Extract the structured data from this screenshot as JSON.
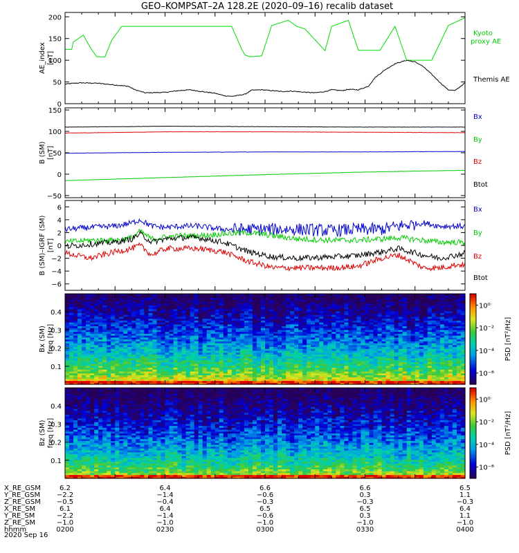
{
  "title": "GEO–KOMPSAT–2A 128.2E (2020–09–16) recalib dataset",
  "chart_data": [
    {
      "type": "line",
      "ylabel": "AE_index",
      "yunit": "[nT]",
      "ylim": [
        0,
        210
      ],
      "yticks": [
        0,
        50,
        100,
        150,
        200
      ],
      "x_range_min": [
        0,
        120
      ],
      "series": [
        {
          "name": "Kyoto proxy AE",
          "color": "#00dd00",
          "x": [
            0,
            4,
            5,
            11,
            15,
            19,
            24,
            28,
            34,
            40,
            52,
            64,
            80,
            88,
            95,
            100,
            106,
            108,
            111,
            118,
            124,
            134,
            139,
            144,
            156,
            160,
            170,
            176,
            184,
            189,
            198,
            205,
            220,
            230,
            240
          ],
          "y": [
            125,
            125,
            142,
            158,
            130,
            108,
            108,
            146,
            178,
            178,
            178,
            178,
            178,
            178,
            178,
            178,
            125,
            112,
            108,
            110,
            180,
            192,
            178,
            172,
            122,
            178,
            192,
            123,
            123,
            123,
            178,
            100,
            100,
            180,
            198
          ]
        },
        {
          "name": "Themis AE",
          "color": "#000000",
          "x": [
            0,
            5,
            10,
            20,
            30,
            38,
            42,
            48,
            60,
            68,
            75,
            82,
            90,
            96,
            100,
            104,
            108,
            112,
            118,
            124,
            130,
            136,
            142,
            150,
            156,
            160,
            166,
            170,
            176,
            182,
            186,
            192,
            198,
            205,
            210,
            214,
            218,
            222,
            226,
            230,
            234,
            240
          ],
          "y": [
            45,
            47,
            48,
            47,
            43,
            40,
            32,
            25,
            26,
            30,
            32,
            28,
            24,
            18,
            17,
            19,
            22,
            31,
            32,
            30,
            28,
            29,
            27,
            25,
            28,
            32,
            30,
            33,
            32,
            40,
            60,
            78,
            92,
            100,
            96,
            88,
            75,
            60,
            45,
            32,
            30,
            48
          ]
        }
      ],
      "legend": [
        "Kyoto proxy AE",
        "Themis AE"
      ]
    },
    {
      "type": "line",
      "ylabel": "B (SM)",
      "yunit": "[nT]",
      "ylim": [
        -55,
        155
      ],
      "yticks": [
        -50,
        0,
        50,
        100,
        150
      ],
      "series": [
        {
          "name": "Bx",
          "color": "#0000cc",
          "x": [
            0,
            60,
            120,
            180,
            240
          ],
          "y": [
            49,
            51,
            52,
            52,
            53
          ]
        },
        {
          "name": "By",
          "color": "#00cc00",
          "x": [
            0,
            60,
            120,
            180,
            240
          ],
          "y": [
            -15,
            -8,
            -1,
            5,
            9
          ]
        },
        {
          "name": "Bz",
          "color": "#dd0000",
          "x": [
            0,
            60,
            120,
            180,
            240
          ],
          "y": [
            96,
            99,
            99,
            98,
            97
          ]
        },
        {
          "name": "Btot",
          "color": "#000000",
          "x": [
            0,
            60,
            120,
            180,
            240
          ],
          "y": [
            110,
            112,
            111,
            110,
            110
          ]
        }
      ],
      "legend": [
        "Bx",
        "By",
        "Bz",
        "Btot"
      ]
    },
    {
      "type": "line",
      "ylabel": "B (SM)–IGRF (SM)",
      "yunit": "[nT]",
      "ylim": [
        -7,
        7
      ],
      "yticks": [
        -6,
        -4,
        -2,
        0,
        2,
        4,
        6
      ],
      "series": [
        {
          "name": "Bx",
          "color": "#0000cc",
          "x": [
            0,
            15,
            30,
            40,
            45,
            52,
            60,
            70,
            80,
            95,
            110,
            125,
            140,
            160,
            175,
            190,
            200,
            215,
            225,
            235,
            240
          ],
          "y": [
            2.5,
            2.8,
            3.0,
            3.5,
            4.0,
            3.0,
            2.8,
            3.0,
            3.0,
            2.5,
            2.5,
            2.5,
            2.5,
            2.3,
            2.5,
            2.5,
            3.0,
            3.5,
            3.0,
            3.0,
            3.0
          ]
        },
        {
          "name": "By",
          "color": "#00cc00",
          "x": [
            0,
            15,
            30,
            40,
            45,
            52,
            60,
            70,
            80,
            95,
            110,
            125,
            140,
            160,
            175,
            190,
            200,
            215,
            225,
            235,
            240
          ],
          "y": [
            0.5,
            0.8,
            0.8,
            1.2,
            2.2,
            1.0,
            1.3,
            1.5,
            1.5,
            1.8,
            2.0,
            1.5,
            1.0,
            0.8,
            0.8,
            1.0,
            1.2,
            0.8,
            0.5,
            0.5,
            0.4
          ]
        },
        {
          "name": "Bz",
          "color": "#dd0000",
          "x": [
            0,
            15,
            30,
            40,
            45,
            52,
            60,
            70,
            80,
            95,
            110,
            125,
            140,
            160,
            175,
            190,
            200,
            215,
            225,
            235,
            240
          ],
          "y": [
            -1.2,
            -2.0,
            -1.0,
            -0.5,
            0.0,
            -1.5,
            -0.5,
            -0.5,
            -0.5,
            -1.0,
            -2.5,
            -3.5,
            -3.5,
            -3.5,
            -3.3,
            -2.0,
            -1.5,
            -3.5,
            -3.5,
            -3.0,
            -3.0
          ]
        },
        {
          "name": "Btot",
          "color": "#000000",
          "x": [
            0,
            15,
            30,
            40,
            45,
            52,
            60,
            70,
            80,
            95,
            110,
            125,
            140,
            160,
            175,
            190,
            200,
            215,
            225,
            235,
            240
          ],
          "y": [
            -0.2,
            0.2,
            0.5,
            1.0,
            1.8,
            0.5,
            1.0,
            1.2,
            1.2,
            0.5,
            -1.0,
            -1.8,
            -2.0,
            -1.8,
            -1.6,
            -1.0,
            -0.5,
            -1.5,
            -2.0,
            -1.5,
            -1.2
          ]
        }
      ],
      "legend": [
        "Bx",
        "By",
        "Bz",
        "Btot"
      ]
    },
    {
      "type": "heatmap",
      "ylabel": "Bx (SM)",
      "yunit": "freq [Hz]",
      "ylim": [
        0,
        0.5
      ],
      "yticks": [
        0.1,
        0.2,
        0.3,
        0.4
      ],
      "colorbar_label": "PSD [nT²/Hz]",
      "colorbar_ticks": [
        "10⁰",
        "10⁻²",
        "10⁻⁴",
        "10⁻⁶"
      ],
      "colorbar_range_log10": [
        -7,
        1
      ]
    },
    {
      "type": "heatmap",
      "ylabel": "Bz (SM)",
      "yunit": "freq [Hz]",
      "ylim": [
        0,
        0.5
      ],
      "yticks": [
        0.1,
        0.2,
        0.3,
        0.4
      ],
      "colorbar_label": "PSD [nT²/Hz]",
      "colorbar_ticks": [
        "10⁰",
        "10⁻²",
        "10⁻⁴",
        "10⁻⁶"
      ],
      "colorbar_range_log10": [
        -7,
        1
      ]
    }
  ],
  "ephemeris": {
    "rows": [
      {
        "label": "X_RE_GSM",
        "values": [
          "6.2",
          "6.4",
          "6.6",
          "6.6",
          "6.5"
        ]
      },
      {
        "label": "Y_RE_GSM",
        "values": [
          "−2.2",
          "−1.4",
          "−0.6",
          "0.3",
          "1.1"
        ]
      },
      {
        "label": "Z_RE_GSM",
        "values": [
          "−0.5",
          "−0.4",
          "−0.3",
          "−0.3",
          "−0.3"
        ]
      },
      {
        "label": "X_RE_SM",
        "values": [
          "6.1",
          "6.4",
          "6.5",
          "6.5",
          "6.4"
        ]
      },
      {
        "label": "Y_RE_SM",
        "values": [
          "−2.2",
          "−1.4",
          "−0.6",
          "0.3",
          "1.1"
        ]
      },
      {
        "label": "Z_RE_SM",
        "values": [
          "−1.0",
          "−1.0",
          "−1.0",
          "−1.0",
          "−1.0"
        ]
      },
      {
        "label": "hhmm",
        "values": [
          "0200",
          "0230",
          "0300",
          "0330",
          "0400"
        ]
      }
    ],
    "date": "2020 Sep 16"
  }
}
